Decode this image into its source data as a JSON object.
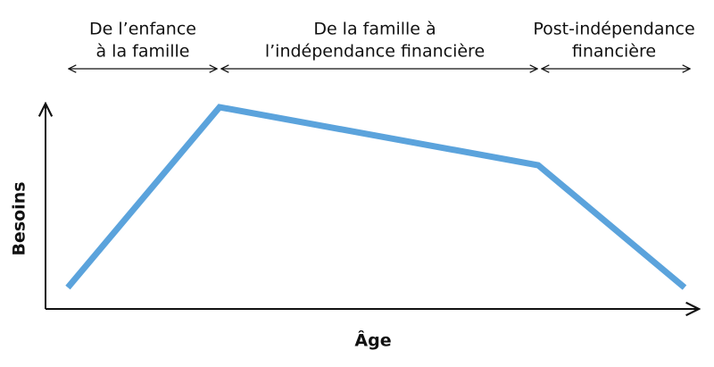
{
  "phases": [
    {
      "lines": [
        "De l’enfance",
        "à la famille"
      ]
    },
    {
      "lines": [
        "De la famille à",
        "l’indépendance financière"
      ]
    },
    {
      "lines": [
        "Post-indépendance",
        "financière"
      ]
    }
  ],
  "axes": {
    "y_label": "Besoins",
    "x_label": "Âge"
  }
}
